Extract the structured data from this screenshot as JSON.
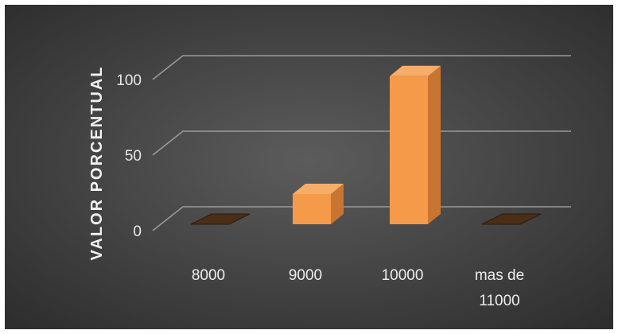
{
  "chart_data": {
    "type": "bar",
    "title": "",
    "xlabel": "",
    "ylabel": "VALOR PORCENTUAL",
    "categories": [
      "8000",
      "9000",
      "10000",
      "mas de 11000"
    ],
    "category_lines": [
      [
        "8000"
      ],
      [
        "9000"
      ],
      [
        "10000"
      ],
      [
        "mas de",
        "11000"
      ]
    ],
    "values": [
      0,
      20,
      98,
      0
    ],
    "ylim": [
      0,
      100
    ],
    "yticks": [
      0,
      50,
      100
    ],
    "grid": true,
    "legend": "none",
    "three_d": true,
    "colors": {
      "background_center": "#5c5c5c",
      "background_edge": "#2e2e2e",
      "bar_front": "#f59a48",
      "bar_side": "#c97532",
      "bar_top": "#f7ad6a",
      "zero_tile": "#4a2e16",
      "gridline": "#9a9a9a",
      "text": "#e6e6e6"
    }
  }
}
